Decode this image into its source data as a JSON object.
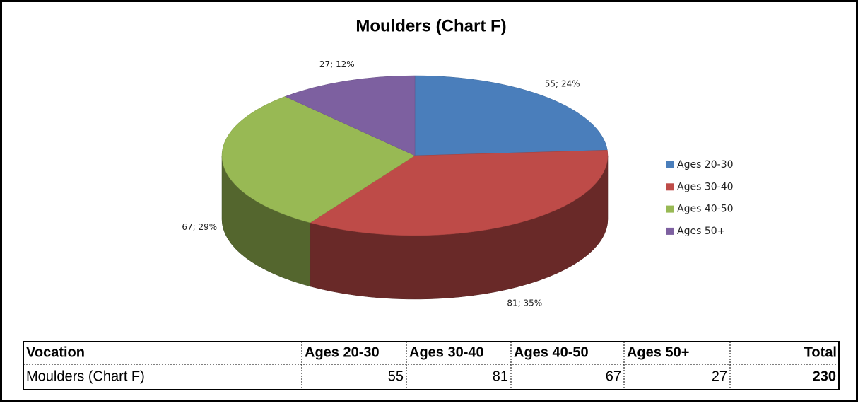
{
  "chart_data": {
    "type": "pie",
    "title": "Moulders (Chart F)",
    "categories": [
      "Ages 20-30",
      "Ages 30-40",
      "Ages 40-50",
      "Ages 50+"
    ],
    "values": [
      55,
      81,
      67,
      27
    ],
    "value_labels": [
      "55; 24%",
      "81; 35%",
      "67; 29%",
      "27; 12%"
    ],
    "colors": [
      "#4a7ebb",
      "#be4b48",
      "#98b954",
      "#7d60a0"
    ],
    "legend": "right"
  },
  "table": {
    "header": [
      "Vocation",
      "Ages 20-30",
      "Ages 30-40",
      "Ages 40-50",
      "Ages 50+",
      "Total"
    ],
    "rows": [
      [
        "Moulders (Chart F)",
        55,
        81,
        67,
        27,
        230
      ]
    ]
  }
}
